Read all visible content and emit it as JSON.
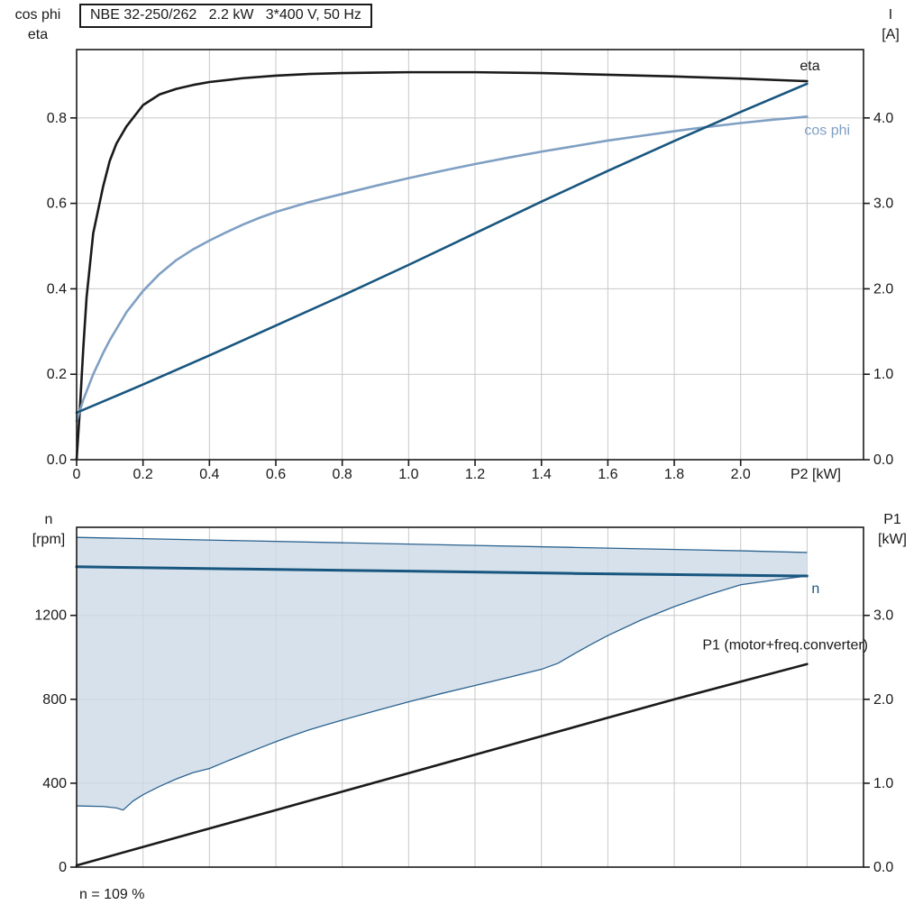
{
  "title_box": {
    "text": "NBE 32-250/262   2.2 kW   3*400 V, 50 Hz"
  },
  "footer": {
    "text": "n = 109 %"
  },
  "colors": {
    "grid": "#c8c8c8",
    "frame": "#1a1a1a",
    "black_curve": "#1a1a1a",
    "dark_blue": "#18567f",
    "light_blue": "#7f9fc3",
    "region_fill": "#ccd9e6",
    "region_stroke": "#2b628f"
  },
  "chart_data": [
    {
      "id": "motor-performance",
      "type": "line",
      "title": "NBE 32-250/262   2.2 kW   3*400 V, 50 Hz",
      "x_axis": {
        "label": "P2 [kW]",
        "range": [
          0,
          2.37
        ],
        "grid_step": 0.2,
        "labeled_ticks": [
          0,
          0.2,
          0.4,
          0.6,
          0.8,
          1.0,
          1.2,
          1.4,
          1.6,
          1.8,
          2.0
        ],
        "tick_labels": [
          "0",
          "0.2",
          "0.4",
          "0.6",
          "0.8",
          "1.0",
          "1.2",
          "1.4",
          "1.6",
          "1.8",
          "2.0"
        ]
      },
      "y_left": {
        "title_lines": [
          "cos phi",
          "eta"
        ],
        "range": [
          0,
          0.96
        ],
        "ticks": [
          0,
          0.2,
          0.4,
          0.6,
          0.8
        ],
        "tick_labels": [
          "0.0",
          "0.2",
          "0.4",
          "0.6",
          "0.8"
        ]
      },
      "y_right": {
        "title_lines": [
          "I",
          "[A]"
        ],
        "range": [
          0,
          4.8
        ],
        "ticks": [
          0,
          1,
          2,
          3,
          4
        ],
        "tick_labels": [
          "0.0",
          "1.0",
          "2.0",
          "3.0",
          "4.0"
        ]
      },
      "series": [
        {
          "id": "eta",
          "label": "eta",
          "axis": "left",
          "color": "#1a1a1a",
          "width": 2.6,
          "points": [
            [
              0,
              0
            ],
            [
              0.01,
              0.12
            ],
            [
              0.02,
              0.26
            ],
            [
              0.03,
              0.38
            ],
            [
              0.05,
              0.53
            ],
            [
              0.08,
              0.64
            ],
            [
              0.1,
              0.7
            ],
            [
              0.12,
              0.74
            ],
            [
              0.15,
              0.78
            ],
            [
              0.2,
              0.83
            ],
            [
              0.25,
              0.855
            ],
            [
              0.3,
              0.868
            ],
            [
              0.35,
              0.877
            ],
            [
              0.4,
              0.884
            ],
            [
              0.5,
              0.893
            ],
            [
              0.6,
              0.899
            ],
            [
              0.7,
              0.903
            ],
            [
              0.8,
              0.905
            ],
            [
              0.9,
              0.906
            ],
            [
              1.0,
              0.907
            ],
            [
              1.2,
              0.907
            ],
            [
              1.4,
              0.905
            ],
            [
              1.6,
              0.901
            ],
            [
              1.8,
              0.897
            ],
            [
              2.0,
              0.892
            ],
            [
              2.2,
              0.886
            ]
          ]
        },
        {
          "id": "cos-phi",
          "label": "cos phi",
          "axis": "left",
          "color": "#7f9fc3",
          "width": 2.6,
          "points": [
            [
              0,
              0.09
            ],
            [
              0.02,
              0.14
            ],
            [
              0.05,
              0.2
            ],
            [
              0.08,
              0.25
            ],
            [
              0.1,
              0.28
            ],
            [
              0.15,
              0.345
            ],
            [
              0.2,
              0.395
            ],
            [
              0.25,
              0.435
            ],
            [
              0.3,
              0.467
            ],
            [
              0.35,
              0.492
            ],
            [
              0.4,
              0.513
            ],
            [
              0.45,
              0.532
            ],
            [
              0.5,
              0.55
            ],
            [
              0.55,
              0.566
            ],
            [
              0.6,
              0.58
            ],
            [
              0.7,
              0.603
            ],
            [
              0.8,
              0.622
            ],
            [
              0.9,
              0.641
            ],
            [
              1.0,
              0.659
            ],
            [
              1.1,
              0.676
            ],
            [
              1.2,
              0.692
            ],
            [
              1.3,
              0.707
            ],
            [
              1.4,
              0.721
            ],
            [
              1.5,
              0.734
            ],
            [
              1.6,
              0.747
            ],
            [
              1.7,
              0.758
            ],
            [
              1.8,
              0.769
            ],
            [
              1.9,
              0.779
            ],
            [
              2.0,
              0.788
            ],
            [
              2.1,
              0.796
            ],
            [
              2.2,
              0.803
            ]
          ]
        },
        {
          "id": "current",
          "label": "",
          "axis": "right",
          "color": "#18567f",
          "width": 2.6,
          "points": [
            [
              0,
              0.55
            ],
            [
              0.2,
              0.88
            ],
            [
              0.4,
              1.22
            ],
            [
              0.6,
              1.57
            ],
            [
              0.8,
              1.92
            ],
            [
              1.0,
              2.28
            ],
            [
              1.2,
              2.65
            ],
            [
              1.4,
              3.02
            ],
            [
              1.6,
              3.38
            ],
            [
              1.8,
              3.73
            ],
            [
              2.0,
              4.07
            ],
            [
              2.2,
              4.4
            ]
          ]
        }
      ]
    },
    {
      "id": "speed-power",
      "type": "line",
      "title": "",
      "x_axis": {
        "label": "",
        "range": [
          0,
          2.37
        ],
        "grid_step": 0.2,
        "labeled_ticks": [],
        "tick_labels": []
      },
      "y_left": {
        "title_lines": [
          "n",
          "[rpm]"
        ],
        "range": [
          0,
          1620
        ],
        "ticks": [
          0,
          400,
          800,
          1200
        ],
        "tick_labels": [
          "0",
          "400",
          "800",
          "1200"
        ]
      },
      "y_right": {
        "title_lines": [
          "P1",
          "[kW]"
        ],
        "range": [
          0,
          4.05
        ],
        "ticks": [
          0,
          1,
          2,
          3
        ],
        "tick_labels": [
          "0.0",
          "1.0",
          "2.0",
          "3.0"
        ]
      },
      "region": {
        "id": "speed-operating-range",
        "axis": "left",
        "fill": "#ccd9e6",
        "stroke": "#2b628f",
        "upper": [
          [
            0,
            1572
          ],
          [
            0.5,
            1556
          ],
          [
            1.0,
            1540
          ],
          [
            1.5,
            1524
          ],
          [
            2.0,
            1508
          ],
          [
            2.2,
            1500
          ]
        ],
        "lower": [
          [
            0,
            292
          ],
          [
            0.08,
            289
          ],
          [
            0.12,
            282
          ],
          [
            0.14,
            272
          ],
          [
            0.17,
            315
          ],
          [
            0.2,
            345
          ],
          [
            0.25,
            385
          ],
          [
            0.3,
            420
          ],
          [
            0.35,
            450
          ],
          [
            0.4,
            470
          ],
          [
            0.45,
            503
          ],
          [
            0.5,
            535
          ],
          [
            0.55,
            567
          ],
          [
            0.6,
            598
          ],
          [
            0.65,
            627
          ],
          [
            0.7,
            654
          ],
          [
            0.75,
            678
          ],
          [
            0.8,
            701
          ],
          [
            0.9,
            745
          ],
          [
            1.0,
            788
          ],
          [
            1.1,
            828
          ],
          [
            1.2,
            866
          ],
          [
            1.3,
            904
          ],
          [
            1.4,
            943
          ],
          [
            1.45,
            972
          ],
          [
            1.5,
            1018
          ],
          [
            1.55,
            1062
          ],
          [
            1.6,
            1104
          ],
          [
            1.7,
            1178
          ],
          [
            1.8,
            1242
          ],
          [
            1.9,
            1297
          ],
          [
            2.0,
            1346
          ],
          [
            2.1,
            1368
          ],
          [
            2.2,
            1388
          ]
        ]
      },
      "series": [
        {
          "id": "n",
          "label": "n",
          "axis": "left",
          "color": "#18567f",
          "width": 3,
          "points": [
            [
              0,
              1432
            ],
            [
              0.5,
              1421
            ],
            [
              1.0,
              1411
            ],
            [
              1.5,
              1400
            ],
            [
              2.0,
              1391
            ],
            [
              2.2,
              1388
            ]
          ]
        },
        {
          "id": "p1",
          "label": "P1 (motor+freq.converter)",
          "axis": "right",
          "color": "#1a1a1a",
          "width": 2.6,
          "points": [
            [
              0,
              0.02
            ],
            [
              0.2,
              0.24
            ],
            [
              0.4,
              0.46
            ],
            [
              0.6,
              0.68
            ],
            [
              0.8,
              0.9
            ],
            [
              1.0,
              1.12
            ],
            [
              1.2,
              1.34
            ],
            [
              1.4,
              1.56
            ],
            [
              1.6,
              1.78
            ],
            [
              1.8,
              2.0
            ],
            [
              2.0,
              2.21
            ],
            [
              2.2,
              2.42
            ]
          ]
        }
      ]
    }
  ]
}
